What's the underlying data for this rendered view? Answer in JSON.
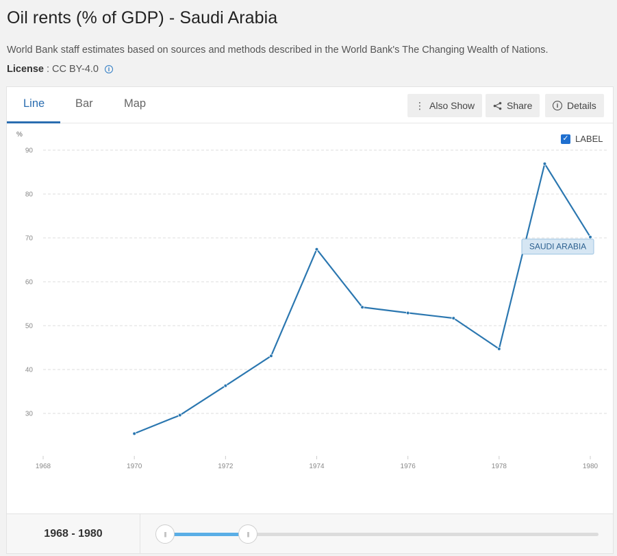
{
  "header": {
    "title": "Oil rents (% of GDP) - Saudi Arabia",
    "source": "World Bank staff estimates based on sources and methods described in the World Bank's The Changing Wealth of Nations.",
    "license_label": "License",
    "license_sep": ":",
    "license_value": "CC BY-4.0"
  },
  "tabs": [
    {
      "label": "Line",
      "active": true
    },
    {
      "label": "Bar",
      "active": false
    },
    {
      "label": "Map",
      "active": false
    }
  ],
  "toolbar": {
    "also_show": "Also Show",
    "share": "Share",
    "details": "Details"
  },
  "label_toggle": {
    "label": "LABEL",
    "checked": true
  },
  "footer": {
    "range": "1968 - 1980",
    "slider_start": 1968,
    "slider_end": 1980
  },
  "chart_data": {
    "type": "line",
    "title": "",
    "ylabel": "%",
    "xlabel": "",
    "xlim": [
      1968,
      1980
    ],
    "ylim": [
      20,
      90
    ],
    "xticks": [
      1968,
      1970,
      1972,
      1974,
      1976,
      1978,
      1980
    ],
    "yticks": [
      30,
      40,
      50,
      60,
      70,
      80,
      90
    ],
    "grid": true,
    "series": [
      {
        "name": "SAUDI ARABIA",
        "color": "#2b77b0",
        "x": [
          1970,
          1971,
          1972,
          1973,
          1974,
          1975,
          1976,
          1977,
          1978,
          1979,
          1980
        ],
        "values": [
          25.4,
          29.6,
          36.3,
          43.1,
          67.4,
          54.2,
          52.9,
          51.7,
          44.7,
          86.9,
          70.2
        ]
      }
    ]
  }
}
